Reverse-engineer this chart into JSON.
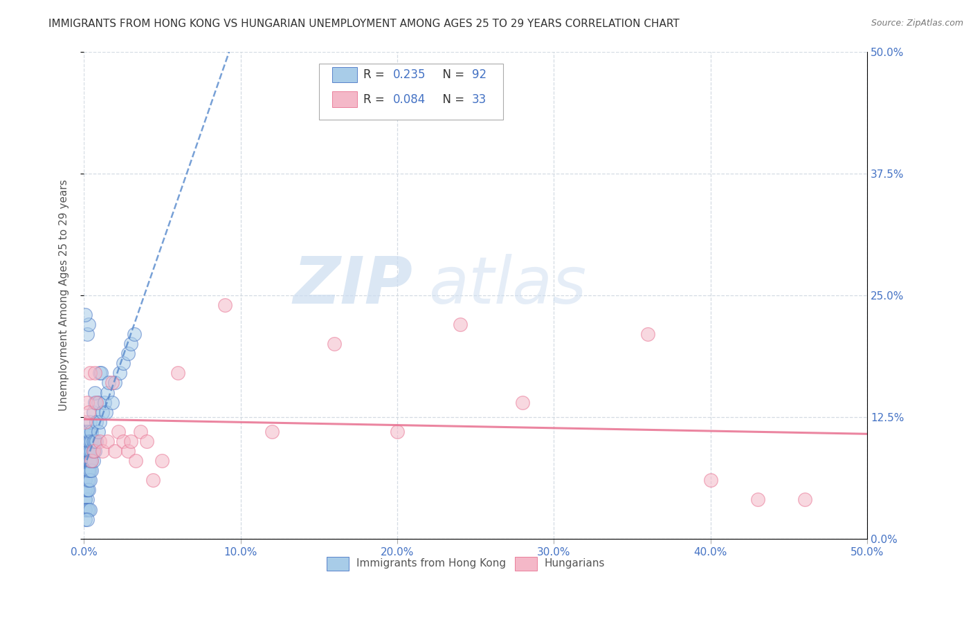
{
  "title": "IMMIGRANTS FROM HONG KONG VS HUNGARIAN UNEMPLOYMENT AMONG AGES 25 TO 29 YEARS CORRELATION CHART",
  "source": "Source: ZipAtlas.com",
  "ylabel": "Unemployment Among Ages 25 to 29 years",
  "right_yticks": [
    0.0,
    0.125,
    0.25,
    0.375,
    0.5
  ],
  "right_yticklabels": [
    "0.0%",
    "12.5%",
    "25.0%",
    "37.5%",
    "50.0%"
  ],
  "legend_r1": "0.235",
  "legend_n1": "92",
  "legend_r2": "0.084",
  "legend_n2": "33",
  "blue_color": "#a8cce8",
  "pink_color": "#f4b8c8",
  "blue_edge_color": "#4472c4",
  "pink_edge_color": "#e87090",
  "blue_line_color": "#5588cc",
  "pink_line_color": "#e87090",
  "watermark_color": "#ccddf0",
  "blue_points_x": [
    0.001,
    0.001,
    0.001,
    0.001,
    0.001,
    0.001,
    0.001,
    0.001,
    0.001,
    0.001,
    0.001,
    0.001,
    0.001,
    0.001,
    0.001,
    0.001,
    0.001,
    0.001,
    0.001,
    0.001,
    0.002,
    0.002,
    0.002,
    0.002,
    0.002,
    0.002,
    0.002,
    0.002,
    0.002,
    0.002,
    0.002,
    0.002,
    0.002,
    0.003,
    0.003,
    0.003,
    0.003,
    0.003,
    0.003,
    0.003,
    0.003,
    0.003,
    0.003,
    0.004,
    0.004,
    0.004,
    0.004,
    0.004,
    0.004,
    0.004,
    0.005,
    0.005,
    0.005,
    0.005,
    0.005,
    0.006,
    0.006,
    0.006,
    0.006,
    0.007,
    0.007,
    0.007,
    0.007,
    0.008,
    0.008,
    0.009,
    0.009,
    0.01,
    0.01,
    0.011,
    0.012,
    0.013,
    0.014,
    0.015,
    0.016,
    0.018,
    0.02,
    0.023,
    0.025,
    0.028,
    0.03,
    0.032,
    0.002,
    0.003,
    0.001,
    0.001,
    0.001,
    0.002,
    0.003,
    0.004,
    0.001,
    0.002
  ],
  "blue_points_y": [
    0.04,
    0.04,
    0.05,
    0.05,
    0.05,
    0.06,
    0.06,
    0.07,
    0.07,
    0.07,
    0.08,
    0.08,
    0.09,
    0.09,
    0.09,
    0.1,
    0.1,
    0.1,
    0.11,
    0.11,
    0.04,
    0.05,
    0.05,
    0.06,
    0.07,
    0.07,
    0.08,
    0.08,
    0.09,
    0.09,
    0.1,
    0.1,
    0.11,
    0.05,
    0.06,
    0.07,
    0.07,
    0.08,
    0.08,
    0.09,
    0.09,
    0.1,
    0.11,
    0.06,
    0.07,
    0.08,
    0.08,
    0.09,
    0.1,
    0.12,
    0.07,
    0.08,
    0.09,
    0.1,
    0.11,
    0.08,
    0.09,
    0.1,
    0.13,
    0.09,
    0.1,
    0.14,
    0.15,
    0.1,
    0.12,
    0.11,
    0.14,
    0.12,
    0.17,
    0.17,
    0.13,
    0.14,
    0.13,
    0.15,
    0.16,
    0.14,
    0.16,
    0.17,
    0.18,
    0.19,
    0.2,
    0.21,
    0.21,
    0.22,
    0.23,
    0.03,
    0.03,
    0.03,
    0.03,
    0.03,
    0.02,
    0.02
  ],
  "pink_points_x": [
    0.001,
    0.002,
    0.003,
    0.004,
    0.005,
    0.006,
    0.007,
    0.008,
    0.01,
    0.012,
    0.015,
    0.018,
    0.02,
    0.022,
    0.025,
    0.028,
    0.03,
    0.033,
    0.036,
    0.04,
    0.044,
    0.05,
    0.06,
    0.09,
    0.12,
    0.16,
    0.2,
    0.24,
    0.28,
    0.36,
    0.4,
    0.43,
    0.46
  ],
  "pink_points_y": [
    0.12,
    0.14,
    0.13,
    0.17,
    0.08,
    0.09,
    0.17,
    0.14,
    0.1,
    0.09,
    0.1,
    0.16,
    0.09,
    0.11,
    0.1,
    0.09,
    0.1,
    0.08,
    0.11,
    0.1,
    0.06,
    0.08,
    0.17,
    0.24,
    0.11,
    0.2,
    0.11,
    0.22,
    0.14,
    0.21,
    0.06,
    0.04,
    0.04
  ],
  "xlim": [
    0.0,
    0.5
  ],
  "ylim": [
    0.0,
    0.5
  ],
  "xticks": [
    0.0,
    0.1,
    0.2,
    0.3,
    0.4,
    0.5
  ],
  "xticklabels": [
    "0.0%",
    "10.0%",
    "20.0%",
    "30.0%",
    "40.0%",
    "50.0%"
  ],
  "yticks": [
    0.0,
    0.125,
    0.25,
    0.375,
    0.5
  ],
  "grid_color": "#d0d8e0",
  "background_color": "#ffffff",
  "title_fontsize": 11,
  "axis_label_fontsize": 11,
  "tick_fontsize": 11
}
